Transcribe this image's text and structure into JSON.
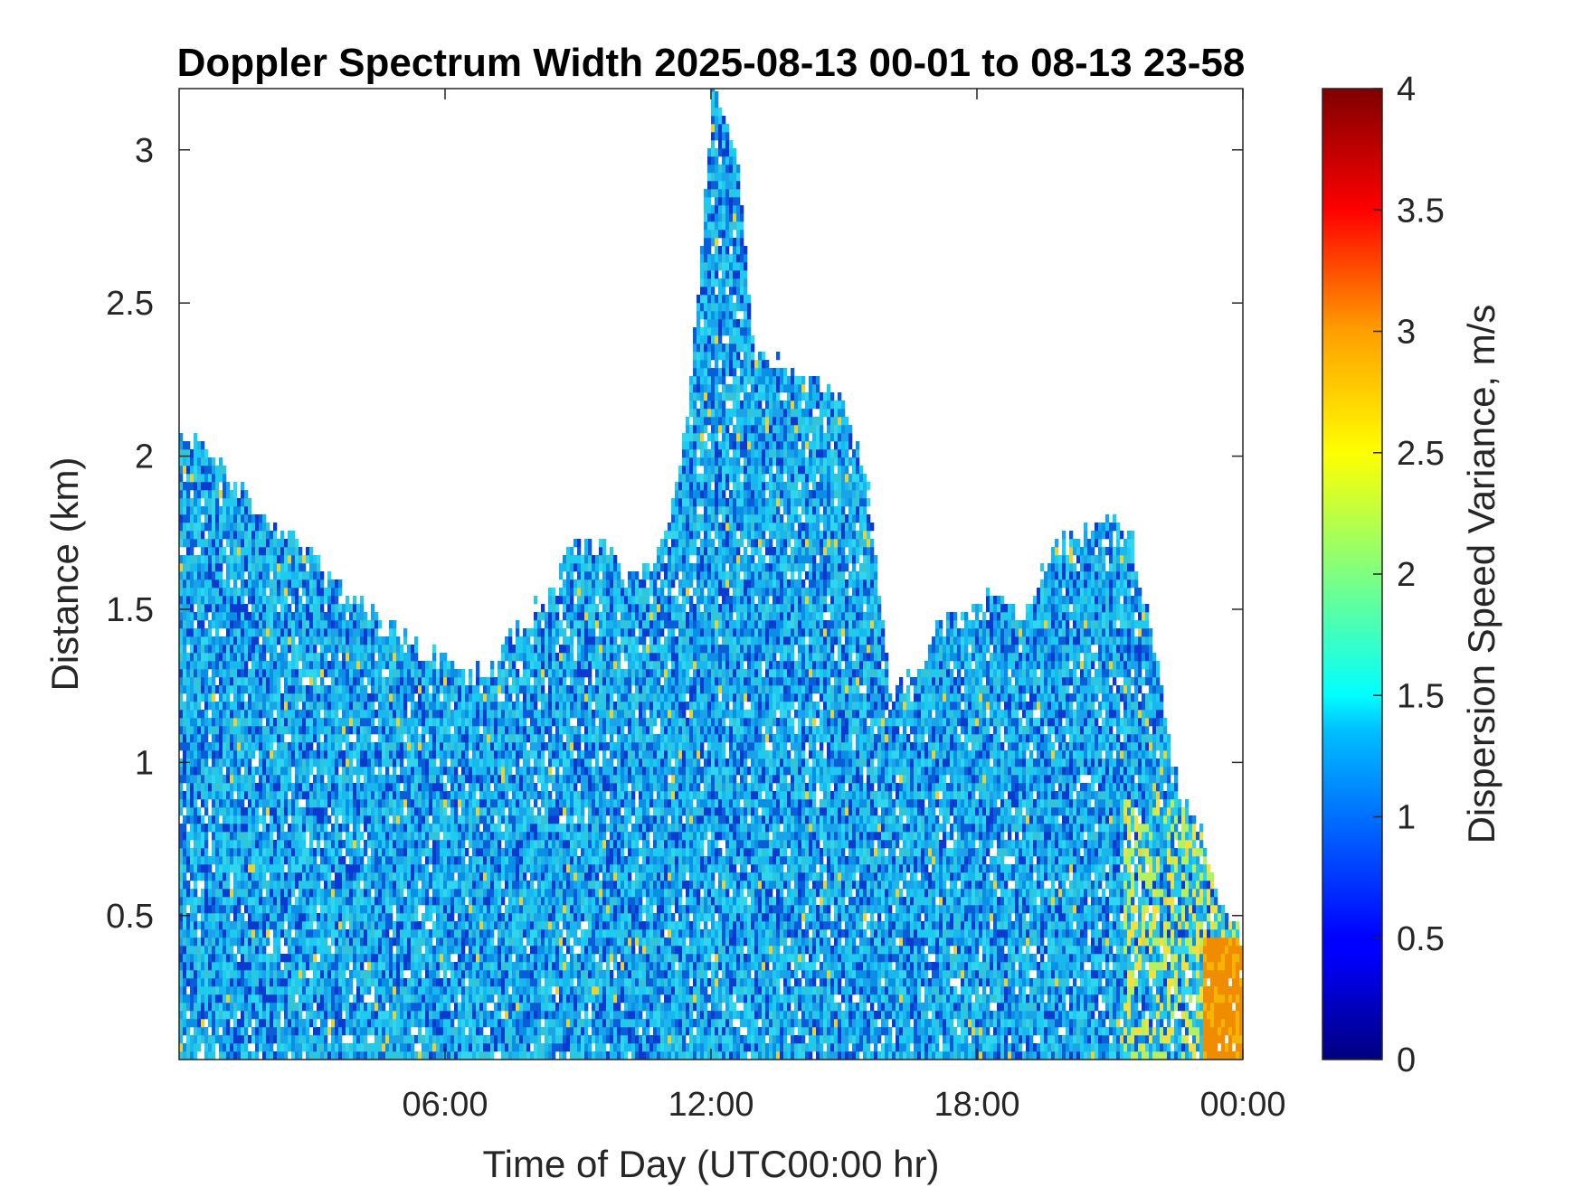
{
  "chart_data": {
    "type": "heatmap",
    "title": "Doppler Spectrum Width 2025-08-13 00-01 to 08-13 23-58",
    "xlabel": "Time of Day (UTC00:00 hr)",
    "ylabel": "Distance (km)",
    "x_ticks": [
      "06:00",
      "12:00",
      "18:00",
      "00:00"
    ],
    "x_tick_hours": [
      6,
      12,
      18,
      24
    ],
    "xlim_hours": [
      0.0,
      24.0
    ],
    "y_ticks": [
      "0.5",
      "1",
      "1.5",
      "2",
      "2.5",
      "3"
    ],
    "y_tick_values": [
      0.5,
      1,
      1.5,
      2,
      2.5,
      3
    ],
    "ylim": [
      0.03,
      3.2
    ],
    "colorbar": {
      "label": "Dispersion Speed Variance, m/s",
      "ticks": [
        "0",
        "0.5",
        "1",
        "1.5",
        "2",
        "2.5",
        "3",
        "3.5",
        "4"
      ],
      "tick_values": [
        0,
        0.5,
        1,
        1.5,
        2,
        2.5,
        3,
        3.5,
        4
      ],
      "range": [
        0,
        4
      ],
      "colormap": "jet"
    },
    "colors": {
      "dominant_low": "#0a5cd8",
      "dominant_mid": "#1ecbf0",
      "high": "#f08c00"
    },
    "echo_top_profile_km": [
      [
        0.0,
        2.05
      ],
      [
        0.5,
        2.0
      ],
      [
        1.0,
        1.95
      ],
      [
        1.5,
        1.85
      ],
      [
        2.0,
        1.75
      ],
      [
        2.5,
        1.75
      ],
      [
        3.0,
        1.65
      ],
      [
        3.5,
        1.55
      ],
      [
        4.0,
        1.5
      ],
      [
        4.5,
        1.45
      ],
      [
        5.0,
        1.4
      ],
      [
        5.5,
        1.35
      ],
      [
        6.0,
        1.3
      ],
      [
        6.5,
        1.28
      ],
      [
        7.0,
        1.3
      ],
      [
        7.5,
        1.4
      ],
      [
        8.0,
        1.5
      ],
      [
        8.5,
        1.6
      ],
      [
        9.0,
        1.7
      ],
      [
        9.5,
        1.7
      ],
      [
        10.0,
        1.6
      ],
      [
        10.5,
        1.6
      ],
      [
        11.0,
        1.75
      ],
      [
        11.5,
        2.2
      ],
      [
        12.0,
        3.2
      ],
      [
        12.5,
        3.0
      ],
      [
        13.0,
        2.3
      ],
      [
        13.5,
        2.3
      ],
      [
        14.0,
        2.25
      ],
      [
        14.5,
        2.2
      ],
      [
        15.0,
        2.15
      ],
      [
        15.5,
        1.9
      ],
      [
        16.0,
        1.2
      ],
      [
        16.5,
        1.25
      ],
      [
        17.0,
        1.4
      ],
      [
        17.5,
        1.45
      ],
      [
        18.0,
        1.5
      ],
      [
        18.5,
        1.55
      ],
      [
        19.0,
        1.45
      ],
      [
        19.5,
        1.65
      ],
      [
        20.0,
        1.7
      ],
      [
        20.5,
        1.75
      ],
      [
        21.0,
        1.8
      ],
      [
        21.5,
        1.7
      ],
      [
        22.0,
        1.3
      ],
      [
        22.5,
        0.9
      ],
      [
        23.0,
        0.75
      ],
      [
        23.5,
        0.5
      ],
      [
        24.0,
        0.4
      ]
    ],
    "high_variance_region": {
      "x_hours": [
        23.0,
        24.0
      ],
      "y_km": [
        0.03,
        0.45
      ],
      "value": 3.0
    }
  }
}
